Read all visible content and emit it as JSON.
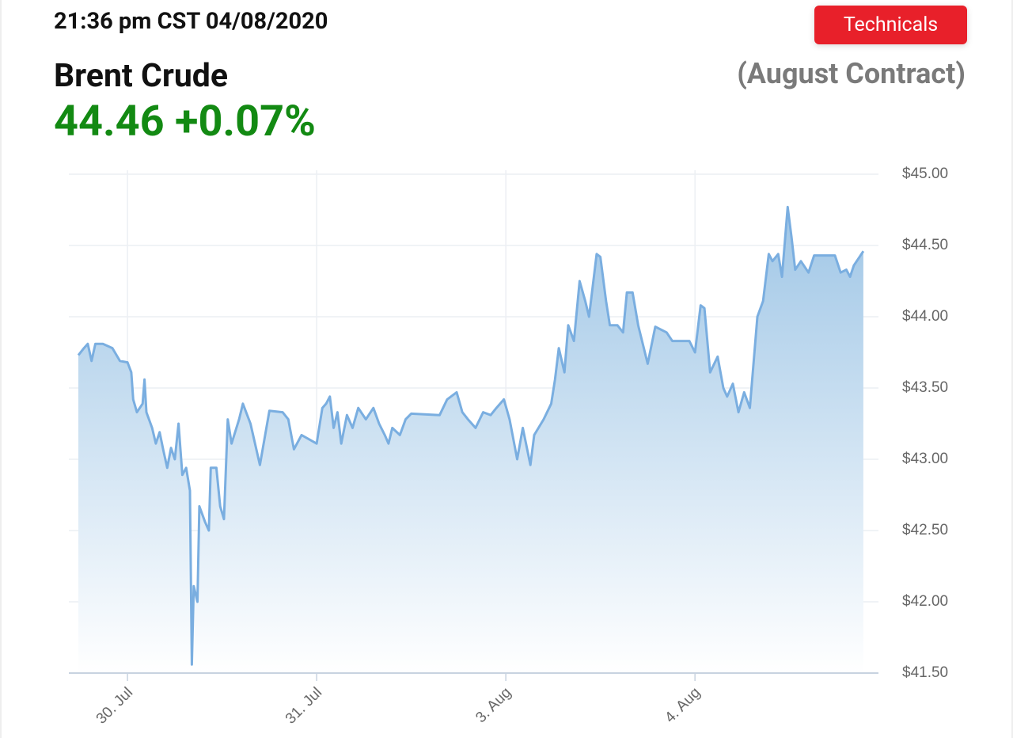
{
  "header": {
    "timestamp": "21:36 pm CST 04/08/2020",
    "button": "Technicals",
    "instrument": "Brent Crude",
    "price": "44.46",
    "change": "+0.07%",
    "contract": "(August Contract)"
  },
  "chart_data": {
    "type": "area",
    "x": [
      -0.26,
      -0.23,
      -0.21,
      -0.19,
      -0.17,
      -0.13,
      -0.08,
      -0.04,
      0,
      0.02,
      0.03,
      0.05,
      0.08,
      0.09,
      0.1,
      0.13,
      0.15,
      0.17,
      0.19,
      0.21,
      0.23,
      0.25,
      0.27,
      0.29,
      0.31,
      0.33,
      0.34,
      0.35,
      0.37,
      0.38,
      0.41,
      0.43,
      0.44,
      0.47,
      0.49,
      0.51,
      0.53,
      0.55,
      0.59,
      0.61,
      0.65,
      0.7,
      0.75,
      0.82,
      0.85,
      0.88,
      0.92,
      1.0,
      1.03,
      1.05,
      1.07,
      1.09,
      1.11,
      1.13,
      1.16,
      1.19,
      1.22,
      1.26,
      1.3,
      1.33,
      1.36,
      1.38,
      1.4,
      1.44,
      1.47,
      1.5,
      1.65,
      1.69,
      1.74,
      1.77,
      1.8,
      1.84,
      1.88,
      1.92,
      1.95,
      1.99,
      2.02,
      2.06,
      2.09,
      2.13,
      2.15,
      2.2,
      2.24,
      2.26,
      2.28,
      2.31,
      2.33,
      2.36,
      2.39,
      2.42,
      2.44,
      2.48,
      2.5,
      2.53,
      2.55,
      2.59,
      2.62,
      2.64,
      2.67,
      2.7,
      2.75,
      2.79,
      2.85,
      2.88,
      2.93,
      2.97,
      3.0,
      3.03,
      3.05,
      3.08,
      3.12,
      3.15,
      3.17,
      3.2,
      3.23,
      3.26,
      3.29,
      3.33,
      3.36,
      3.39,
      3.41,
      3.44,
      3.46,
      3.49,
      3.51,
      3.53,
      3.56,
      3.6,
      3.63,
      3.74,
      3.77,
      3.8,
      3.82,
      3.84,
      3.87,
      3.89
    ],
    "series": [
      {
        "color": "#7aaee0",
        "values": [
          43.73,
          43.78,
          43.81,
          43.69,
          43.81,
          43.81,
          43.78,
          43.69,
          43.68,
          43.61,
          43.42,
          43.33,
          43.39,
          43.56,
          43.33,
          43.22,
          43.11,
          43.19,
          43.06,
          42.94,
          43.08,
          43.0,
          43.25,
          42.89,
          42.94,
          42.78,
          41.56,
          42.11,
          42.0,
          42.67,
          42.56,
          42.5,
          42.94,
          42.94,
          42.67,
          42.58,
          43.28,
          43.11,
          43.28,
          43.39,
          43.25,
          42.96,
          43.34,
          43.33,
          43.28,
          43.07,
          43.17,
          43.11,
          43.36,
          43.39,
          43.44,
          43.22,
          43.33,
          43.11,
          43.31,
          43.22,
          43.36,
          43.28,
          43.36,
          43.25,
          43.17,
          43.11,
          43.22,
          43.17,
          43.28,
          43.32,
          43.31,
          43.42,
          43.47,
          43.33,
          43.28,
          43.22,
          43.33,
          43.31,
          43.36,
          43.42,
          43.28,
          43.0,
          43.22,
          42.96,
          43.17,
          43.28,
          43.39,
          43.56,
          43.78,
          43.61,
          43.94,
          43.83,
          44.25,
          44.11,
          44.0,
          44.44,
          44.42,
          44.11,
          43.94,
          43.94,
          43.89,
          44.17,
          44.17,
          43.94,
          43.67,
          43.93,
          43.89,
          43.83,
          43.83,
          43.83,
          43.75,
          44.08,
          44.06,
          43.61,
          43.72,
          43.5,
          43.44,
          43.53,
          43.33,
          43.47,
          43.36,
          44.0,
          44.11,
          44.44,
          44.39,
          44.44,
          44.28,
          44.77,
          44.56,
          44.33,
          44.39,
          44.31,
          44.43,
          44.43,
          44.31,
          44.33,
          44.28,
          44.36,
          44.42,
          44.46
        ]
      }
    ],
    "xlim": [
      -0.31,
      3.97
    ],
    "xticks": [
      {
        "value": 0,
        "label": "30. Jul"
      },
      {
        "value": 1,
        "label": "31. Jul"
      },
      {
        "value": 2,
        "label": "3. Aug"
      },
      {
        "value": 3,
        "label": "4. Aug"
      }
    ],
    "ylim": [
      41.5,
      45
    ],
    "yticks": [
      {
        "value": 41.5,
        "label": "$41.50"
      },
      {
        "value": 42,
        "label": "$42.00"
      },
      {
        "value": 42.5,
        "label": "$42.50"
      },
      {
        "value": 43,
        "label": "$43.00"
      },
      {
        "value": 43.5,
        "label": "$43.50"
      },
      {
        "value": 44,
        "label": "$44.00"
      },
      {
        "value": 44.5,
        "label": "$44.50"
      },
      {
        "value": 45,
        "label": "$45.00"
      }
    ],
    "grid": true
  }
}
